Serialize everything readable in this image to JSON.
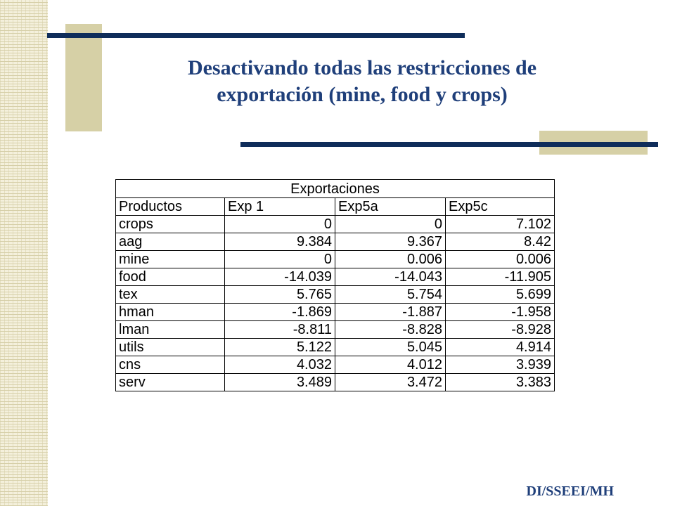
{
  "slide": {
    "title_line1": "Desactivando todas las restricciones de",
    "title_line2": "exportación (mine, food y crops)",
    "footer": "DI/SSEEI/MH",
    "colors": {
      "title": "#1f3f7a",
      "bars": "#0f2d5a",
      "tan": "#d6d0a6"
    }
  },
  "table": {
    "caption": "Exportaciones",
    "headers": [
      "Productos",
      "Exp 1",
      "Exp5a",
      "Exp5c"
    ],
    "rows": [
      [
        "crops",
        "0",
        "0",
        "7.102"
      ],
      [
        "aag",
        "9.384",
        "9.367",
        "8.42"
      ],
      [
        "mine",
        "0",
        "0.006",
        "0.006"
      ],
      [
        "food",
        "-14.039",
        "-14.043",
        "-11.905"
      ],
      [
        "tex",
        "5.765",
        "5.754",
        "5.699"
      ],
      [
        "hman",
        "-1.869",
        "-1.887",
        "-1.958"
      ],
      [
        "lman",
        "-8.811",
        "-8.828",
        "-8.928"
      ],
      [
        "utils",
        "5.122",
        "5.045",
        "4.914"
      ],
      [
        "cns",
        "4.032",
        "4.012",
        "3.939"
      ],
      [
        "serv",
        "3.489",
        "3.472",
        "3.383"
      ]
    ]
  }
}
